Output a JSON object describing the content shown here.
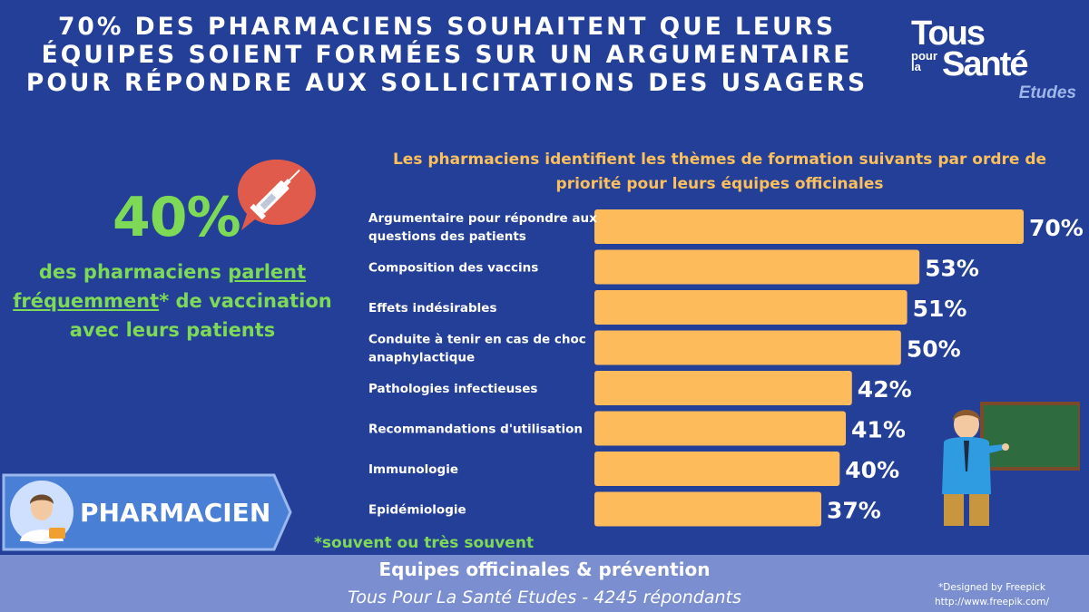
{
  "header": {
    "title_lines": [
      "70% DES PHARMACIENS SOUHAITENT QUE LEURS",
      "ÉQUIPES SOIENT FORMÉES SUR UN ARGUMENTAIRE",
      "POUR RÉPONDRE AUX SOLLICITATIONS DES USAGERS"
    ]
  },
  "logo": {
    "line1": "Tous",
    "line2a": "pour",
    "line2b": "la",
    "line3": "Santé",
    "line4": "Etudes"
  },
  "left_stat": {
    "value": "40%",
    "text_before": "des pharmaciens ",
    "text_underlined": "parlent fréquemment",
    "text_after": "* de vaccination avec leurs patients"
  },
  "badge": {
    "label": "PHARMACIEN"
  },
  "footnote": "*souvent ou très souvent",
  "footer": {
    "line1": "Equipes officinales & prévention",
    "line2": "Tous Pour La Santé Etudes - 4245 répondants",
    "credit1": "*Designed by Freepick",
    "credit2": "http://www.freepik.com/"
  },
  "colors": {
    "background": "#233f97",
    "bar": "#fdbb5c",
    "green": "#7ed957",
    "footer": "#7a8ed0",
    "chart_title": "#fbbf5c"
  },
  "chart_data": {
    "type": "bar",
    "orientation": "horizontal",
    "title": "Les pharmaciens identifient les thèmes de formation suivants par ordre de priorité pour leurs équipes officinales",
    "categories": [
      [
        "Argumentaire pour répondre aux",
        "questions des patients"
      ],
      [
        "Composition des vaccins"
      ],
      [
        "Effets indésirables"
      ],
      [
        "Conduite à tenir en cas de choc",
        "anaphylactique"
      ],
      [
        "Pathologies infectieuses"
      ],
      [
        "Recommandations d'utilisation"
      ],
      [
        "Immunologie"
      ],
      [
        "Epidémiologie"
      ]
    ],
    "values": [
      70,
      53,
      51,
      50,
      42,
      41,
      40,
      37
    ],
    "value_labels": [
      "70%",
      "53%",
      "51%",
      "50%",
      "42%",
      "41%",
      "40%",
      "37%"
    ],
    "xlim": [
      0,
      70
    ],
    "grid": false,
    "legend": "none"
  }
}
